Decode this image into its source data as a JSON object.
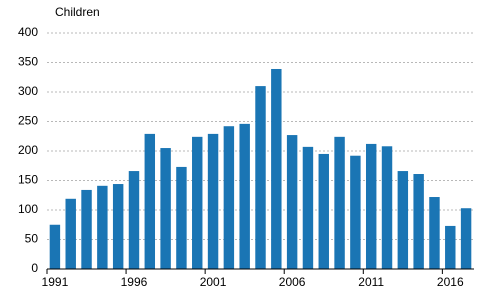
{
  "chart_data": {
    "type": "bar",
    "y_label": "Children",
    "categories": [
      "1991",
      null,
      null,
      null,
      null,
      "1996",
      null,
      null,
      null,
      null,
      "2001",
      null,
      null,
      null,
      null,
      "2006",
      null,
      null,
      null,
      null,
      "2011",
      null,
      null,
      null,
      null,
      "2016",
      null
    ],
    "values": [
      75,
      119,
      134,
      141,
      144,
      166,
      229,
      205,
      173,
      224,
      229,
      242,
      246,
      310,
      339,
      227,
      207,
      195,
      224,
      192,
      212,
      208,
      166,
      161,
      122,
      73,
      103
    ],
    "color": "#1a75b4",
    "ylim": [
      0,
      400
    ],
    "yticks": [
      0,
      50,
      100,
      150,
      200,
      250,
      300,
      350,
      400
    ],
    "grid": true
  }
}
